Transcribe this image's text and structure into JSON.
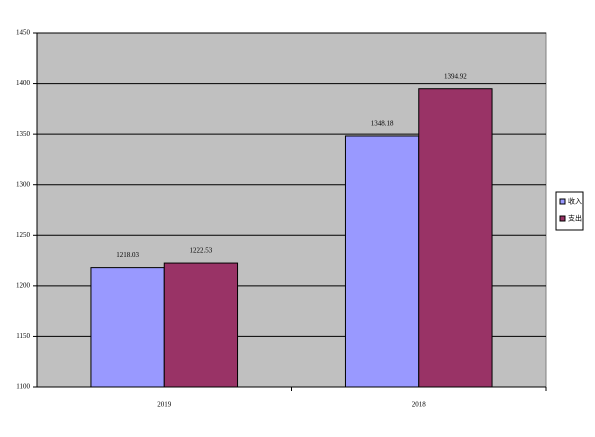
{
  "chart_data": {
    "type": "bar",
    "categories": [
      "2019",
      "2018"
    ],
    "series": [
      {
        "name": "收入",
        "color": "#9999ff",
        "values": [
          1218.03,
          1348.18
        ]
      },
      {
        "name": "支出",
        "color": "#993366",
        "values": [
          1222.53,
          1394.92
        ]
      }
    ],
    "ylim": [
      1100,
      1450
    ],
    "yticks": [
      1100,
      1150,
      1200,
      1250,
      1300,
      1350,
      1400,
      1450
    ],
    "grid": true,
    "legend": "right"
  }
}
